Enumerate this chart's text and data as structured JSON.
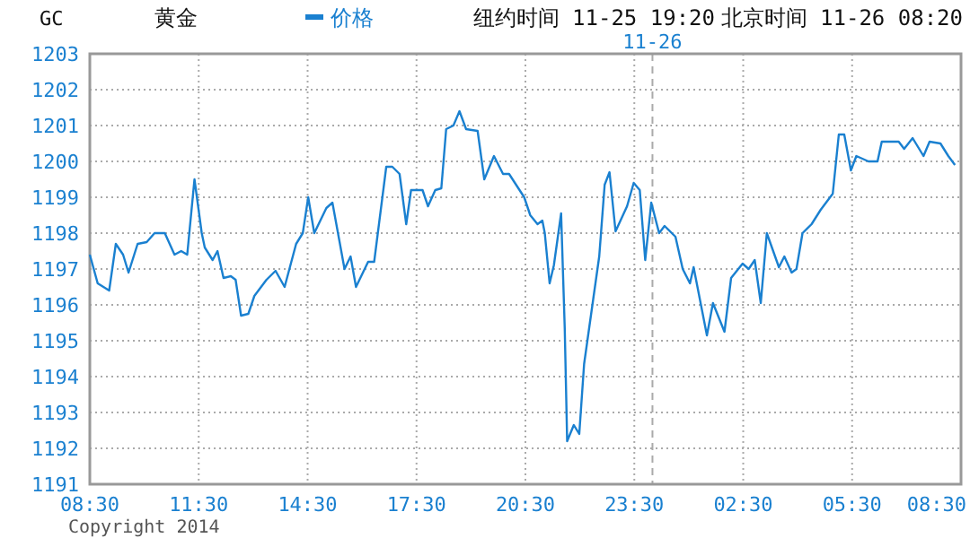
{
  "chart_data": {
    "type": "line",
    "annotations": [
      "GC",
      "黄金",
      "纽约时间 11-25 19:20",
      "北京时间 11-26 08:20",
      "Copyright 2014"
    ],
    "legend": "top",
    "grid": true,
    "line_style": "solid",
    "xlim": [
      "2014-11-25T08:30",
      "2014-11-26T08:30"
    ],
    "xticks": [
      {
        "value": "2014-11-25T08:30",
        "label": "08:30"
      },
      {
        "value": "2014-11-25T11:30",
        "label": "11:30"
      },
      {
        "value": "2014-11-25T14:30",
        "label": "14:30"
      },
      {
        "value": "2014-11-25T17:30",
        "label": "17:30"
      },
      {
        "value": "2014-11-25T20:30",
        "label": "20:30"
      },
      {
        "value": "2014-11-25T23:30",
        "label": "23:30"
      },
      {
        "value": "2014-11-26T02:30",
        "label": "02:30"
      },
      {
        "value": "2014-11-26T05:30",
        "label": "05:30"
      },
      {
        "value": "2014-11-26T08:30",
        "label": "08:30"
      }
    ],
    "ylim": [
      1191,
      1203
    ],
    "yticks": [
      1191,
      1192,
      1193,
      1194,
      1195,
      1196,
      1197,
      1198,
      1199,
      1200,
      1201,
      1202,
      1203
    ],
    "ref_lines": [
      {
        "axis": "x",
        "value": "2014-11-26T00:00",
        "label": "11-26",
        "color": "#aaaaaa",
        "line_style": "dashed"
      }
    ],
    "series": [
      {
        "name": "价格",
        "color": "#1a80d0",
        "x": [
          "2014-11-25T08:30",
          "2014-11-25T08:43",
          "2014-11-25T09:02",
          "2014-11-25T09:13",
          "2014-11-25T09:25",
          "2014-11-25T09:34",
          "2014-11-25T09:49",
          "2014-11-25T10:04",
          "2014-11-25T10:17",
          "2014-11-25T10:34",
          "2014-11-25T10:50",
          "2014-11-25T11:01",
          "2014-11-25T11:11",
          "2014-11-25T11:23",
          "2014-11-25T11:35",
          "2014-11-25T11:40",
          "2014-11-25T11:53",
          "2014-11-25T12:01",
          "2014-11-25T12:11",
          "2014-11-25T12:23",
          "2014-11-25T12:31",
          "2014-11-25T12:40",
          "2014-11-25T12:52",
          "2014-11-25T13:02",
          "2014-11-25T13:22",
          "2014-11-25T13:37",
          "2014-11-25T13:52",
          "2014-11-25T14:11",
          "2014-11-25T14:22",
          "2014-11-25T14:31",
          "2014-11-25T14:41",
          "2014-11-25T15:01",
          "2014-11-25T15:11",
          "2014-11-25T15:31",
          "2014-11-25T15:41",
          "2014-11-25T15:50",
          "2014-11-25T16:10",
          "2014-11-25T16:20",
          "2014-11-25T16:40",
          "2014-11-25T16:50",
          "2014-11-25T17:02",
          "2014-11-25T17:13",
          "2014-11-25T17:21",
          "2014-11-25T17:40",
          "2014-11-25T17:49",
          "2014-11-25T18:01",
          "2014-11-25T18:11",
          "2014-11-25T18:19",
          "2014-11-25T18:31",
          "2014-11-25T18:41",
          "2014-11-25T18:52",
          "2014-11-25T19:11",
          "2014-11-25T19:22",
          "2014-11-25T19:38",
          "2014-11-25T19:53",
          "2014-11-25T20:03",
          "2014-11-25T20:28",
          "2014-11-25T20:38",
          "2014-11-25T20:50",
          "2014-11-25T20:58",
          "2014-11-25T21:02",
          "2014-11-25T21:10",
          "2014-11-25T21:17",
          "2014-11-25T21:29",
          "2014-11-25T21:35",
          "2014-11-25T21:39",
          "2014-11-25T21:50",
          "2014-11-25T21:59",
          "2014-11-25T22:07",
          "2014-11-25T22:22",
          "2014-11-25T22:32",
          "2014-11-25T22:41",
          "2014-11-25T22:49",
          "2014-11-25T22:59",
          "2014-11-25T23:18",
          "2014-11-25T23:29",
          "2014-11-25T23:39",
          "2014-11-25T23:48",
          "2014-11-25T23:58",
          "2014-11-26T00:11",
          "2014-11-26T00:20",
          "2014-11-26T00:38",
          "2014-11-26T00:50",
          "2014-11-26T01:02",
          "2014-11-26T01:08",
          "2014-11-26T01:30",
          "2014-11-26T01:40",
          "2014-11-26T01:59",
          "2014-11-26T02:10",
          "2014-11-26T02:29",
          "2014-11-26T02:39",
          "2014-11-26T02:49",
          "2014-11-26T02:59",
          "2014-11-26T03:09",
          "2014-11-26T03:29",
          "2014-11-26T03:38",
          "2014-11-26T03:50",
          "2014-11-26T03:58",
          "2014-11-26T04:08",
          "2014-11-26T04:23",
          "2014-11-26T04:38",
          "2014-11-26T04:58",
          "2014-11-26T05:08",
          "2014-11-26T05:17",
          "2014-11-26T05:28",
          "2014-11-26T05:37",
          "2014-11-26T05:57",
          "2014-11-26T06:12",
          "2014-11-26T06:19",
          "2014-11-26T06:47",
          "2014-11-26T06:56",
          "2014-11-26T07:10",
          "2014-11-26T07:28",
          "2014-11-26T07:38",
          "2014-11-26T07:56",
          "2014-11-26T08:09",
          "2014-11-26T08:20"
        ],
        "values": [
          1197.4,
          1196.6,
          1196.4,
          1197.7,
          1197.4,
          1196.9,
          1197.7,
          1197.75,
          1198.0,
          1198.0,
          1197.4,
          1197.5,
          1197.4,
          1199.5,
          1198.0,
          1197.6,
          1197.25,
          1197.5,
          1196.75,
          1196.8,
          1196.7,
          1195.7,
          1195.75,
          1196.25,
          1196.7,
          1196.95,
          1196.5,
          1197.7,
          1198.0,
          1199.0,
          1198.0,
          1198.7,
          1198.85,
          1197.0,
          1197.35,
          1196.5,
          1197.2,
          1197.2,
          1199.85,
          1199.85,
          1199.65,
          1198.25,
          1199.2,
          1199.2,
          1198.75,
          1199.2,
          1199.25,
          1200.9,
          1201.0,
          1201.4,
          1200.9,
          1200.85,
          1199.5,
          1200.15,
          1199.65,
          1199.65,
          1199.0,
          1198.5,
          1198.25,
          1198.35,
          1198.0,
          1196.6,
          1197.1,
          1198.55,
          1195.35,
          1192.2,
          1192.65,
          1192.4,
          1194.35,
          1196.15,
          1197.35,
          1199.35,
          1199.7,
          1198.05,
          1198.75,
          1199.4,
          1199.2,
          1197.25,
          1198.85,
          1198.0,
          1198.2,
          1197.9,
          1197.0,
          1196.6,
          1197.05,
          1195.15,
          1196.05,
          1195.25,
          1196.75,
          1197.15,
          1197.0,
          1197.25,
          1196.05,
          1198.0,
          1197.05,
          1197.35,
          1196.9,
          1197.0,
          1198.0,
          1198.25,
          1198.65,
          1199.1,
          1200.75,
          1200.75,
          1199.75,
          1200.15,
          1200.0,
          1200.0,
          1200.55,
          1200.55,
          1200.35,
          1200.65,
          1200.15,
          1200.55,
          1200.5,
          1200.15,
          1199.9
        ]
      }
    ]
  }
}
